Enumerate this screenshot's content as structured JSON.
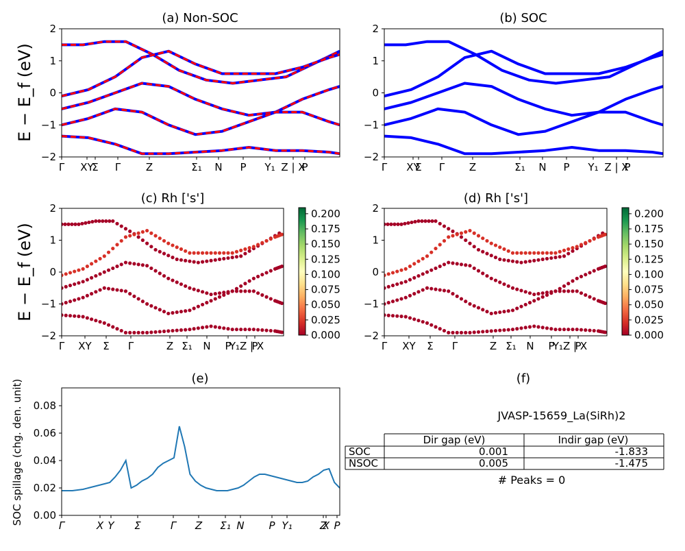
{
  "chart_data": [
    {
      "type": "line",
      "id": "a",
      "title": "(a) Non-SOC",
      "ylabel": "E − E_f (eV)",
      "ylim": [
        -2,
        2
      ],
      "yticks": [
        "−2",
        "−1",
        "0",
        "1",
        "2"
      ],
      "xtick_labels": [
        "Γ",
        "XY",
        "Σ",
        "Γ",
        "Z",
        "Σ₁",
        "N",
        "P",
        "Y₁",
        "Z | X",
        "P"
      ],
      "series": [
        {
          "style": "red-dashed-over-blue",
          "x": [
            0,
            8,
            16,
            24,
            34,
            44,
            54,
            64,
            74,
            84,
            94,
            104
          ],
          "y": [
            1.5,
            1.5,
            1.6,
            1.6,
            1.2,
            0.7,
            0.4,
            0.3,
            0.4,
            0.5,
            0.9,
            1.3
          ]
        },
        {
          "style": "red-dashed-over-blue",
          "x": [
            0,
            10,
            20,
            30,
            40,
            50,
            60,
            70,
            80,
            90,
            100,
            104
          ],
          "y": [
            -0.1,
            0.1,
            0.5,
            1.1,
            1.3,
            0.9,
            0.6,
            0.6,
            0.6,
            0.8,
            1.1,
            1.2
          ]
        },
        {
          "style": "red-dashed-over-blue",
          "x": [
            0,
            10,
            20,
            30,
            40,
            50,
            60,
            70,
            80,
            90,
            100,
            104
          ],
          "y": [
            -0.5,
            -0.3,
            0.0,
            0.3,
            0.2,
            -0.2,
            -0.5,
            -0.7,
            -0.6,
            -0.2,
            0.1,
            0.2
          ]
        },
        {
          "style": "red-dashed-over-blue",
          "x": [
            0,
            10,
            20,
            30,
            40,
            50,
            60,
            70,
            80,
            90,
            100,
            104
          ],
          "y": [
            -1.0,
            -0.8,
            -0.5,
            -0.6,
            -1.0,
            -1.3,
            -1.2,
            -0.9,
            -0.6,
            -0.6,
            -0.9,
            -1.0
          ]
        },
        {
          "style": "red-dashed-over-blue",
          "x": [
            0,
            10,
            20,
            30,
            40,
            50,
            60,
            70,
            80,
            90,
            100,
            104
          ],
          "y": [
            -1.35,
            -1.4,
            -1.6,
            -1.9,
            -1.9,
            -1.85,
            -1.8,
            -1.7,
            -1.8,
            -1.8,
            -1.85,
            -1.9
          ]
        }
      ]
    },
    {
      "type": "line",
      "id": "b",
      "title": "(b) SOC",
      "ylim": [
        -2,
        2
      ],
      "yticks": [
        "−2",
        "−1",
        "0",
        "1",
        "2"
      ],
      "xtick_labels": [
        "Γ",
        "XY",
        "Σ",
        "Γ",
        "Z",
        "Σ₁",
        "N",
        "P",
        "Y₁",
        "Z | X",
        "P"
      ],
      "series": [
        {
          "style": "blue",
          "x": [
            0,
            8,
            16,
            24,
            34,
            44,
            54,
            64,
            74,
            84,
            94,
            104
          ],
          "y": [
            1.5,
            1.5,
            1.6,
            1.6,
            1.2,
            0.7,
            0.4,
            0.3,
            0.4,
            0.5,
            0.9,
            1.3
          ]
        },
        {
          "style": "blue",
          "x": [
            0,
            10,
            20,
            30,
            40,
            50,
            60,
            70,
            80,
            90,
            100,
            104
          ],
          "y": [
            -0.1,
            0.1,
            0.5,
            1.1,
            1.3,
            0.9,
            0.6,
            0.6,
            0.6,
            0.8,
            1.1,
            1.2
          ]
        },
        {
          "style": "blue",
          "x": [
            0,
            10,
            20,
            30,
            40,
            50,
            60,
            70,
            80,
            90,
            100,
            104
          ],
          "y": [
            -0.5,
            -0.3,
            0.0,
            0.3,
            0.2,
            -0.2,
            -0.5,
            -0.7,
            -0.6,
            -0.2,
            0.1,
            0.2
          ]
        },
        {
          "style": "blue",
          "x": [
            0,
            10,
            20,
            30,
            40,
            50,
            60,
            70,
            80,
            90,
            100,
            104
          ],
          "y": [
            -1.0,
            -0.8,
            -0.5,
            -0.6,
            -1.0,
            -1.3,
            -1.2,
            -0.9,
            -0.6,
            -0.6,
            -0.9,
            -1.0
          ]
        },
        {
          "style": "blue",
          "x": [
            0,
            10,
            20,
            30,
            40,
            50,
            60,
            70,
            80,
            90,
            100,
            104
          ],
          "y": [
            -1.35,
            -1.4,
            -1.6,
            -1.9,
            -1.9,
            -1.85,
            -1.8,
            -1.7,
            -1.8,
            -1.8,
            -1.85,
            -1.9
          ]
        }
      ]
    },
    {
      "type": "scatter",
      "id": "c",
      "title": "(c)  Rh ['s']",
      "ylabel": "E − E_f (eV)",
      "ylim": [
        -2,
        2
      ],
      "yticks": [
        "−2",
        "−1",
        "0",
        "1",
        "2"
      ],
      "xtick_labels": [
        "Γ",
        "XY",
        "Σ",
        "Γ",
        "Z",
        "Σ₁",
        "N",
        "P",
        "Y₁Z | X",
        "P"
      ],
      "colorbar": {
        "min": 0.0,
        "max": 0.2,
        "ticks": [
          "0.000",
          "0.025",
          "0.050",
          "0.075",
          "0.100",
          "0.125",
          "0.150",
          "0.175",
          "0.200"
        ],
        "colormap": "RdYlGn"
      },
      "series": [
        {
          "weight": 0.0,
          "x": [
            0,
            8,
            16,
            24,
            34,
            44,
            54,
            64,
            74,
            84,
            94,
            104
          ],
          "y": [
            1.5,
            1.5,
            1.6,
            1.6,
            1.2,
            0.7,
            0.4,
            0.3,
            0.4,
            0.5,
            0.9,
            1.3
          ]
        },
        {
          "weight": 0.04,
          "x": [
            0,
            10,
            20,
            30,
            40,
            50,
            60,
            70,
            80,
            90,
            100,
            104
          ],
          "y": [
            -0.1,
            0.1,
            0.5,
            1.1,
            1.3,
            0.9,
            0.6,
            0.6,
            0.6,
            0.8,
            1.1,
            1.2
          ]
        },
        {
          "weight": 0.01,
          "x": [
            0,
            10,
            20,
            30,
            40,
            50,
            60,
            70,
            80,
            90,
            100,
            104
          ],
          "y": [
            -0.5,
            -0.3,
            0.0,
            0.3,
            0.2,
            -0.2,
            -0.5,
            -0.7,
            -0.6,
            -0.2,
            0.1,
            0.2
          ]
        },
        {
          "weight": 0.0,
          "x": [
            0,
            10,
            20,
            30,
            40,
            50,
            60,
            70,
            80,
            90,
            100,
            104
          ],
          "y": [
            -1.0,
            -0.8,
            -0.5,
            -0.6,
            -1.0,
            -1.3,
            -1.2,
            -0.9,
            -0.6,
            -0.6,
            -0.9,
            -1.0
          ]
        },
        {
          "weight": 0.0,
          "x": [
            0,
            10,
            20,
            30,
            40,
            50,
            60,
            70,
            80,
            90,
            100,
            104
          ],
          "y": [
            -1.35,
            -1.4,
            -1.6,
            -1.9,
            -1.9,
            -1.85,
            -1.8,
            -1.7,
            -1.8,
            -1.8,
            -1.85,
            -1.9
          ]
        }
      ]
    },
    {
      "type": "scatter",
      "id": "d",
      "title": "(d) Rh ['s']",
      "ylim": [
        -2,
        2
      ],
      "yticks": [
        "−2",
        "−1",
        "0",
        "1",
        "2"
      ],
      "xtick_labels": [
        "Γ",
        "XY",
        "Σ",
        "Γ",
        "Z",
        "Σ₁",
        "N",
        "P",
        "Y₁Z | X",
        "P"
      ],
      "colorbar": {
        "min": 0.0,
        "max": 0.2,
        "ticks": [
          "0.000",
          "0.025",
          "0.050",
          "0.075",
          "0.100",
          "0.125",
          "0.150",
          "0.175",
          "0.200"
        ],
        "colormap": "RdYlGn"
      },
      "series": [
        {
          "weight": 0.0,
          "x": [
            0,
            8,
            16,
            24,
            34,
            44,
            54,
            64,
            74,
            84,
            94,
            104
          ],
          "y": [
            1.5,
            1.5,
            1.6,
            1.6,
            1.2,
            0.7,
            0.4,
            0.3,
            0.4,
            0.5,
            0.9,
            1.3
          ]
        },
        {
          "weight": 0.04,
          "x": [
            0,
            10,
            20,
            30,
            40,
            50,
            60,
            70,
            80,
            90,
            100,
            104
          ],
          "y": [
            -0.1,
            0.1,
            0.5,
            1.1,
            1.3,
            0.9,
            0.6,
            0.6,
            0.6,
            0.8,
            1.1,
            1.2
          ]
        },
        {
          "weight": 0.01,
          "x": [
            0,
            10,
            20,
            30,
            40,
            50,
            60,
            70,
            80,
            90,
            100,
            104
          ],
          "y": [
            -0.5,
            -0.3,
            0.0,
            0.3,
            0.2,
            -0.2,
            -0.5,
            -0.7,
            -0.6,
            -0.2,
            0.1,
            0.2
          ]
        },
        {
          "weight": 0.0,
          "x": [
            0,
            10,
            20,
            30,
            40,
            50,
            60,
            70,
            80,
            90,
            100,
            104
          ],
          "y": [
            -1.0,
            -0.8,
            -0.5,
            -0.6,
            -1.0,
            -1.3,
            -1.2,
            -0.9,
            -0.6,
            -0.6,
            -0.9,
            -1.0
          ]
        },
        {
          "weight": 0.0,
          "x": [
            0,
            10,
            20,
            30,
            40,
            50,
            60,
            70,
            80,
            90,
            100,
            104
          ],
          "y": [
            -1.35,
            -1.4,
            -1.6,
            -1.9,
            -1.9,
            -1.85,
            -1.8,
            -1.7,
            -1.8,
            -1.8,
            -1.85,
            -1.9
          ]
        }
      ]
    },
    {
      "type": "line",
      "id": "e",
      "title": "(e)",
      "ylabel": "SOC spillage (chg. den. unit)",
      "ylim": [
        0.0,
        0.093
      ],
      "yticks": [
        "0.00",
        "0.02",
        "0.04",
        "0.06",
        "0.08"
      ],
      "xtick_labels": [
        "Γ",
        "X",
        "Y",
        "Σ",
        "Γ",
        "Z",
        "Σ₁",
        "N",
        "P",
        "Y₁",
        "Z",
        "X",
        "P"
      ],
      "series": [
        {
          "color": "#1f77b4",
          "x": [
            0,
            4,
            8,
            10,
            12,
            14,
            16,
            18,
            20,
            22,
            24,
            26,
            28,
            30,
            32,
            34,
            36,
            38,
            40,
            42,
            44,
            46,
            48,
            50,
            52,
            54,
            56,
            58,
            60,
            62,
            64,
            66,
            68,
            70,
            72,
            74,
            76,
            78,
            80,
            82,
            84,
            86,
            88,
            90,
            92,
            94,
            96,
            98,
            100,
            102,
            104
          ],
          "y": [
            0.018,
            0.018,
            0.019,
            0.02,
            0.021,
            0.022,
            0.023,
            0.024,
            0.028,
            0.033,
            0.04,
            0.02,
            0.022,
            0.025,
            0.027,
            0.03,
            0.035,
            0.038,
            0.04,
            0.042,
            0.065,
            0.05,
            0.03,
            0.025,
            0.022,
            0.02,
            0.019,
            0.018,
            0.018,
            0.018,
            0.019,
            0.02,
            0.022,
            0.025,
            0.028,
            0.03,
            0.03,
            0.029,
            0.028,
            0.027,
            0.026,
            0.025,
            0.024,
            0.024,
            0.025,
            0.028,
            0.03,
            0.033,
            0.034,
            0.024,
            0.02
          ]
        }
      ]
    }
  ],
  "panel_f": {
    "title": "(f)",
    "material": "JVASP-15659_La(SiRh)2",
    "table": {
      "headers": [
        "",
        "Dir gap (eV)",
        "Indir gap (eV)"
      ],
      "rows": [
        [
          "SOC",
          "0.001",
          "-1.833"
        ],
        [
          "NSOC",
          "0.005",
          "-1.475"
        ]
      ]
    },
    "peaks": "# Peaks = 0"
  },
  "colors": {
    "blue": "#0000ff",
    "red": "#ff0000",
    "line_e": "#1f77b4"
  }
}
